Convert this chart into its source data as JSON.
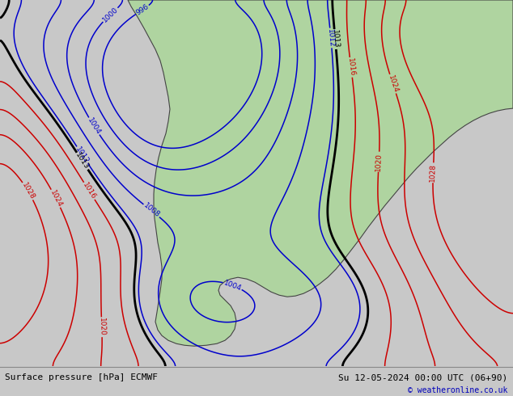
{
  "title_left": "Surface pressure [hPa] ECMWF",
  "title_right": "Su 12-05-2024 00:00 UTC (06+90)",
  "copyright": "© weatheronline.co.uk",
  "bg_color": "#c8c8c8",
  "land_color": "#afd4a0",
  "isobar_blue_color": "#0000cc",
  "isobar_red_color": "#cc0000",
  "isobar_black_color": "#000000",
  "label_fontsize": 6.5,
  "footer_fontsize": 8,
  "fig_width": 6.34,
  "fig_height": 4.9,
  "dpi": 100
}
